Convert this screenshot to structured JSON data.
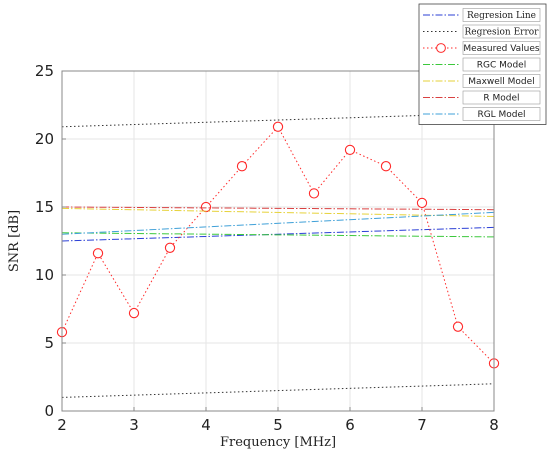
{
  "chart_data": {
    "type": "line",
    "xlabel": "Frequency [MHz]",
    "ylabel": "SNR [dB]",
    "xlim": [
      2,
      8
    ],
    "ylim": [
      0,
      25
    ],
    "xticks": [
      2,
      3,
      4,
      5,
      6,
      7,
      8
    ],
    "yticks": [
      0,
      5,
      10,
      15,
      20,
      25
    ],
    "grid": true,
    "legend_position": "top-right",
    "series": [
      {
        "name": "Regresion Line",
        "color": "#2b3fd6",
        "style": "dashdot",
        "marker": "none",
        "x": [
          2,
          8
        ],
        "y": [
          12.5,
          13.5
        ]
      },
      {
        "name": "Regresion Error",
        "color": "#333333",
        "style": "dotted",
        "marker": "none",
        "x": [
          2,
          8
        ],
        "y": [
          20.9,
          21.9
        ]
      },
      {
        "name": "Regresion Error",
        "color": "#333333",
        "style": "dotted",
        "marker": "none",
        "x": [
          2,
          8
        ],
        "y": [
          1.0,
          2.0
        ]
      },
      {
        "name": "Measured Values",
        "color": "#ff2a2a",
        "style": "dotted",
        "marker": "circle",
        "x": [
          2,
          2.5,
          3,
          3.5,
          4,
          4.5,
          5,
          5.5,
          6,
          6.5,
          7,
          7.5,
          8
        ],
        "y": [
          5.8,
          11.6,
          7.2,
          12.0,
          15.0,
          18.0,
          20.9,
          16.0,
          19.2,
          18.0,
          15.3,
          6.2,
          3.5
        ]
      },
      {
        "name": "RGC Model",
        "color": "#3cc83c",
        "style": "dashdot",
        "marker": "none",
        "x": [
          2,
          8
        ],
        "y": [
          13.1,
          12.8
        ]
      },
      {
        "name": "Maxwell Model",
        "color": "#e6d23a",
        "style": "dashdot",
        "marker": "none",
        "x": [
          2,
          8
        ],
        "y": [
          14.9,
          14.3
        ]
      },
      {
        "name": "R Model",
        "color": "#d94141",
        "style": "dashdot",
        "marker": "none",
        "x": [
          2,
          8
        ],
        "y": [
          15.0,
          14.8
        ]
      },
      {
        "name": "RGL Model",
        "color": "#3fa0d8",
        "style": "dashdot",
        "marker": "none",
        "x": [
          2,
          8
        ],
        "y": [
          13.0,
          14.6
        ]
      }
    ]
  }
}
